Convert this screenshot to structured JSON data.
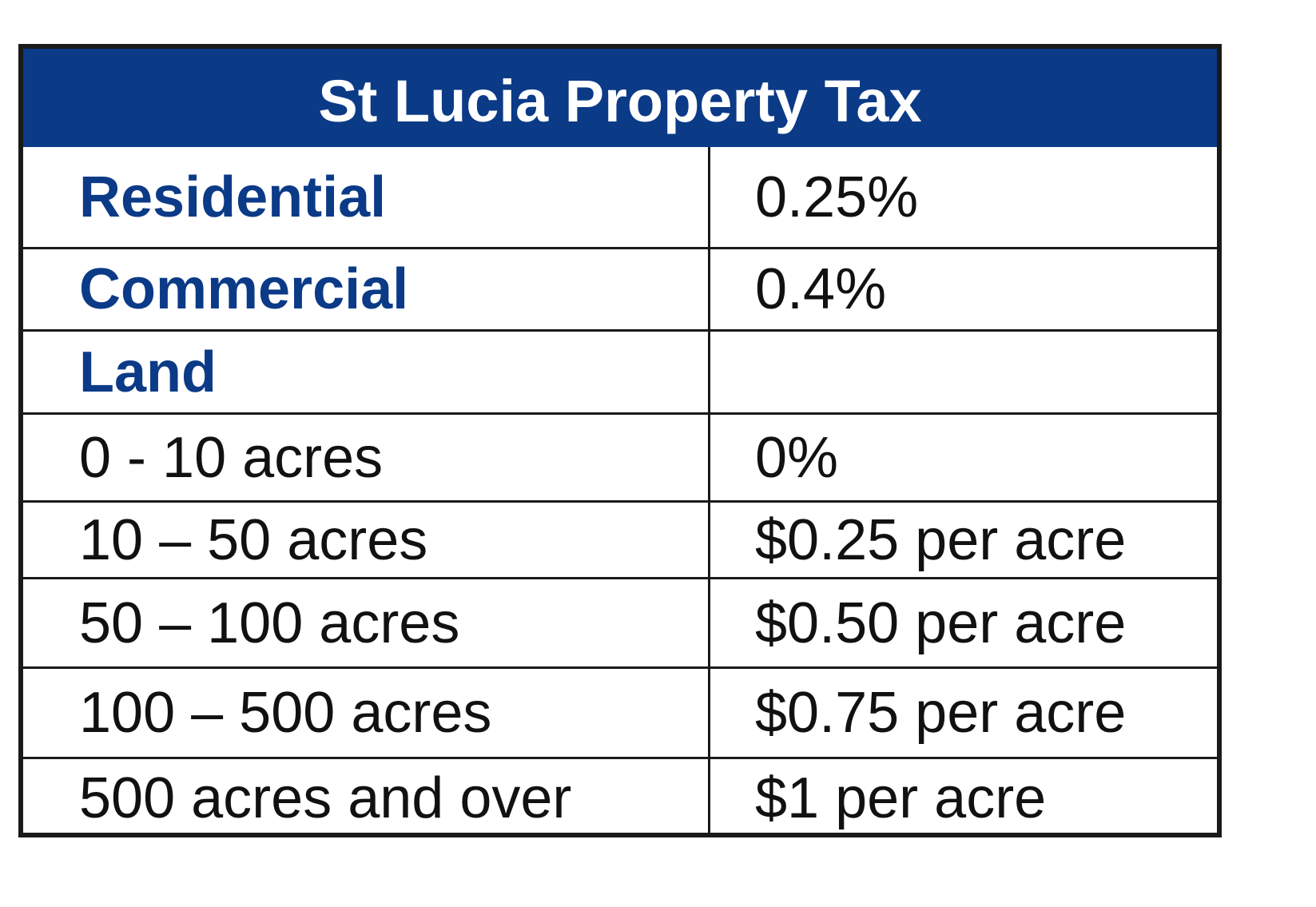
{
  "table": {
    "title": "St Lucia Property Tax",
    "rows": [
      {
        "label": "Residential",
        "value": "0.25%",
        "heading": true
      },
      {
        "label": "Commercial",
        "value": "0.4%",
        "heading": true
      },
      {
        "label": "Land",
        "value": "",
        "heading": true
      },
      {
        "label": "0  - 10 acres",
        "value": "0%",
        "heading": false
      },
      {
        "label": "10 – 50 acres",
        "value": "$0.25 per acre",
        "heading": false
      },
      {
        "label": "50 – 100 acres",
        "value": "$0.50 per acre",
        "heading": false
      },
      {
        "label": "100 – 500 acres",
        "value": "$0.75 per acre",
        "heading": false
      },
      {
        "label": "500 acres and over",
        "value": "$1 per acre",
        "heading": false
      }
    ]
  },
  "colors": {
    "header_bg": "#0b3a87",
    "heading_text": "#0b3a87",
    "border": "#1a1a1a"
  }
}
